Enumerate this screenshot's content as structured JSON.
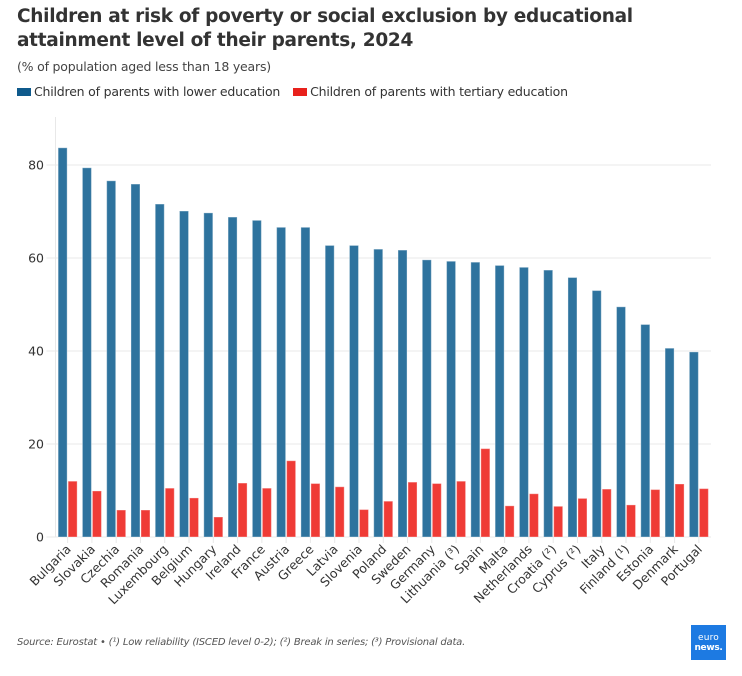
{
  "header": {
    "title": "Children at risk of poverty or social exclusion by educational attainment level of their parents, 2024",
    "subtitle": "(% of population aged less than 18 years)"
  },
  "legend": [
    {
      "label": "Children of parents with lower education",
      "color": "#0f5a8c"
    },
    {
      "label": "Children of parents with tertiary education",
      "color": "#e8211c"
    }
  ],
  "footer": {
    "source": "Source: Eurostat • (¹) Low reliability (ISCED level 0-2); (²) Break in series; (³) Provisional data."
  },
  "logo": {
    "line1": "euro",
    "line2": "news."
  },
  "colors": {
    "lower": "#2e739e",
    "tertiary": "#ef3b36",
    "grid": "#e8e8e8"
  },
  "chart_data": {
    "type": "bar",
    "title": "Children at risk of poverty or social exclusion by educational attainment level of their parents, 2024",
    "subtitle": "(% of population aged less than 18 years)",
    "xlabel": "",
    "ylabel": "",
    "ylim": [
      0,
      90
    ],
    "yticks": [
      0,
      20,
      40,
      60,
      80
    ],
    "grid": true,
    "legend_position": "top-left",
    "categories": [
      "Bulgaria",
      "Slovakia",
      "Czechia",
      "Romania",
      "Luxembourg",
      "Belgium",
      "Hungary",
      "Ireland",
      "France",
      "Austria",
      "Greece",
      "Latvia",
      "Slovenia",
      "Poland",
      "Sweden",
      "Germany",
      "Lithuania (³)",
      "Spain",
      "Malta",
      "Netherlands",
      "Croatia (²)",
      "Cyprus (²)",
      "Italy",
      "Finland (¹)",
      "Estonia",
      "Denmark",
      "Portugal"
    ],
    "series": [
      {
        "name": "Children of parents with lower education",
        "values": [
          83.7,
          79.4,
          76.6,
          75.9,
          71.6,
          70.1,
          69.7,
          68.8,
          68.1,
          66.6,
          66.6,
          62.7,
          62.7,
          61.9,
          61.7,
          59.6,
          59.3,
          59.1,
          58.4,
          58.0,
          57.4,
          55.8,
          53.0,
          49.5,
          45.7,
          40.6,
          39.8
        ]
      },
      {
        "name": "Children of parents with tertiary education",
        "values": [
          12.0,
          9.9,
          5.8,
          5.8,
          10.5,
          8.4,
          4.3,
          11.6,
          10.5,
          16.4,
          11.5,
          10.8,
          5.9,
          7.7,
          11.8,
          11.5,
          12.0,
          19.0,
          6.7,
          9.3,
          6.6,
          8.3,
          10.3,
          6.9,
          10.2,
          11.4,
          10.4
        ]
      }
    ]
  }
}
